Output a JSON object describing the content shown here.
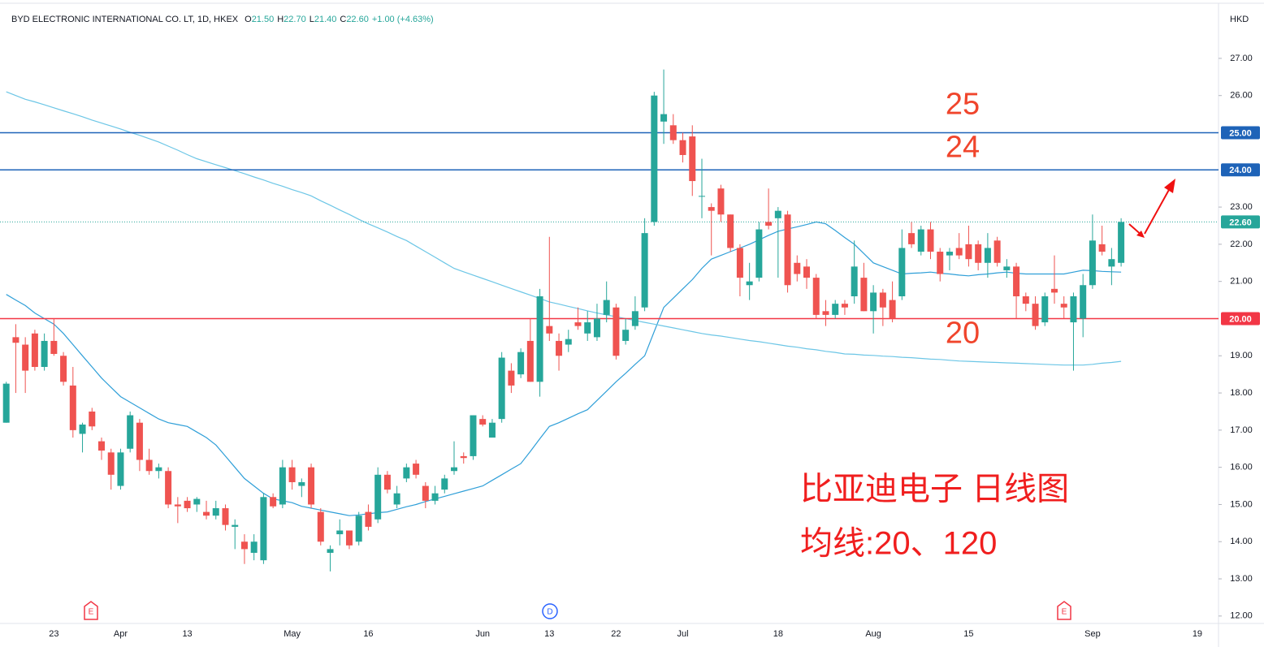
{
  "chart_data": {
    "type": "candlestick",
    "symbol": "BYD ELECTRONIC INTERNATIONAL CO. LT, 1D, HKEX",
    "legend_items": [
      {
        "key": "O",
        "value": "21.50"
      },
      {
        "key": "H",
        "value": "22.70"
      },
      {
        "key": "L",
        "value": "21.40"
      },
      {
        "key": "C",
        "value": "22.60"
      },
      {
        "key": "",
        "value": "+1.00 (+4.63%)"
      }
    ],
    "currency": "HKD",
    "up_color": "#26a69a",
    "down_color": "#ef5350",
    "categories": [
      null,
      null,
      null,
      null,
      null,
      "23",
      null,
      null,
      null,
      null,
      null,
      null,
      "Apr",
      null,
      null,
      null,
      null,
      null,
      null,
      "13",
      null,
      null,
      null,
      null,
      null,
      null,
      null,
      null,
      null,
      null,
      "May",
      null,
      null,
      null,
      null,
      null,
      null,
      null,
      "16",
      null,
      null,
      null,
      null,
      null,
      null,
      null,
      null,
      null,
      null,
      null,
      "Jun",
      null,
      null,
      null,
      null,
      null,
      null,
      "13",
      null,
      null,
      null,
      null,
      null,
      null,
      "22",
      null,
      null,
      null,
      null,
      null,
      null,
      "Jul",
      null,
      null,
      null,
      null,
      null,
      null,
      null,
      null,
      null,
      "18",
      null,
      null,
      null,
      null,
      null,
      null,
      null,
      null,
      null,
      "Aug",
      null,
      null,
      null,
      null,
      null,
      null,
      null,
      null,
      null,
      "15",
      null,
      null,
      null,
      null,
      null,
      null,
      null,
      null,
      null,
      null,
      null,
      null,
      "Sep",
      null,
      null,
      null,
      null,
      null,
      null,
      null,
      null,
      null,
      null,
      "19",
      null,
      null
    ],
    "open": [
      17.2,
      19.5,
      19.3,
      19.6,
      18.7,
      19.4,
      19.0,
      18.2,
      16.9,
      17.5,
      16.7,
      16.4,
      15.5,
      16.5,
      17.2,
      16.2,
      15.9,
      15.9,
      15.0,
      15.1,
      15.0,
      14.8,
      14.7,
      14.9,
      14.4,
      14.0,
      13.7,
      13.5,
      15.2,
      15.0,
      16.0,
      15.5,
      16.0,
      14.8,
      13.7,
      14.2,
      14.3,
      14.0,
      14.8,
      14.6,
      15.8,
      15.0,
      15.7,
      16.1,
      15.5,
      15.1,
      15.4,
      15.9,
      16.3,
      16.3,
      17.3,
      16.8,
      17.3,
      18.6,
      18.5,
      19.4,
      18.3,
      19.8,
      19.4,
      19.3,
      19.9,
      19.6,
      19.5,
      20.1,
      20.3,
      19.4,
      19.8,
      20.3,
      22.6,
      25.3,
      25.2,
      24.8,
      24.9,
      23.3,
      23.0,
      23.5,
      22.8,
      21.9,
      20.9,
      21.1,
      22.6,
      22.7,
      22.8,
      21.5,
      21.4,
      21.1,
      20.2,
      20.1,
      20.4,
      20.6,
      21.1,
      20.2,
      20.7,
      20.5,
      20.6,
      22.3,
      21.8,
      22.4,
      21.8,
      21.7,
      21.9,
      22.0,
      22.0,
      21.5,
      22.1,
      21.3,
      21.4,
      20.6,
      20.4,
      19.9,
      20.8,
      20.4,
      19.9,
      20.0,
      20.9,
      22.0,
      21.4,
      21.5,
      null,
      null,
      null,
      null,
      null,
      null,
      null,
      null,
      null,
      null
    ],
    "high": [
      18.3,
      19.85,
      19.5,
      19.7,
      19.6,
      20.0,
      19.1,
      18.7,
      17.2,
      17.6,
      16.8,
      16.5,
      16.5,
      17.5,
      17.3,
      16.5,
      16.1,
      16.0,
      15.2,
      15.2,
      15.2,
      15.1,
      15.1,
      15.0,
      14.6,
      14.2,
      14.2,
      15.3,
      15.3,
      16.2,
      16.2,
      15.7,
      16.1,
      14.9,
      13.9,
      14.6,
      14.3,
      14.8,
      15.0,
      16.0,
      15.9,
      15.5,
      16.1,
      16.2,
      15.6,
      15.5,
      15.8,
      16.7,
      16.4,
      17.4,
      17.4,
      17.3,
      19.1,
      18.8,
      19.2,
      20.0,
      20.8,
      22.2,
      19.6,
      19.7,
      20.3,
      20.2,
      20.4,
      21.0,
      20.4,
      20.0,
      20.6,
      22.7,
      26.1,
      26.7,
      25.5,
      25.0,
      25.2,
      24.3,
      23.1,
      23.6,
      22.8,
      22.0,
      21.5,
      22.6,
      23.5,
      23.0,
      22.9,
      21.7,
      21.6,
      21.2,
      20.5,
      20.5,
      20.5,
      22.1,
      21.5,
      20.9,
      20.8,
      21.0,
      22.4,
      22.6,
      22.5,
      22.6,
      21.9,
      21.9,
      22.3,
      22.5,
      22.1,
      22.3,
      22.2,
      21.6,
      21.5,
      20.7,
      20.6,
      20.7,
      21.7,
      20.6,
      20.7,
      21.2,
      22.8,
      22.5,
      21.9,
      22.7,
      null,
      null,
      null,
      null,
      null,
      null,
      null,
      null,
      null,
      null
    ],
    "low": [
      17.2,
      18.0,
      18.0,
      18.6,
      18.6,
      19.0,
      18.2,
      16.8,
      16.4,
      17.0,
      16.2,
      15.4,
      15.4,
      16.4,
      15.9,
      15.8,
      15.7,
      14.9,
      14.5,
      14.8,
      14.8,
      14.6,
      14.6,
      14.3,
      13.8,
      13.4,
      13.5,
      13.4,
      14.9,
      14.9,
      15.4,
      15.2,
      14.9,
      13.9,
      13.2,
      13.9,
      13.8,
      13.9,
      14.3,
      14.5,
      15.3,
      14.9,
      15.6,
      15.7,
      14.9,
      15.0,
      15.3,
      15.8,
      16.1,
      16.2,
      17.1,
      16.8,
      17.2,
      18.0,
      18.4,
      18.3,
      17.9,
      19.4,
      18.6,
      19.1,
      19.7,
      19.4,
      19.4,
      19.9,
      18.9,
      19.3,
      19.7,
      20.2,
      22.5,
      24.7,
      24.7,
      24.2,
      23.3,
      22.7,
      21.7,
      22.6,
      21.8,
      20.6,
      20.5,
      21.0,
      22.4,
      21.1,
      20.7,
      21.0,
      20.8,
      20.0,
      19.8,
      20.0,
      20.1,
      20.4,
      20.2,
      19.6,
      19.8,
      19.9,
      20.5,
      21.9,
      21.7,
      21.6,
      21.0,
      21.3,
      21.6,
      21.4,
      21.3,
      21.1,
      21.4,
      21.1,
      20.0,
      20.2,
      19.7,
      19.8,
      20.4,
      20.0,
      18.6,
      19.5,
      20.8,
      21.7,
      20.9,
      21.4,
      null,
      null,
      null,
      null,
      null,
      null,
      null,
      null,
      null,
      null
    ],
    "close": [
      18.25,
      19.35,
      18.6,
      18.7,
      19.4,
      19.05,
      18.3,
      17.0,
      17.15,
      17.1,
      16.45,
      15.8,
      16.4,
      17.4,
      16.2,
      15.9,
      16.0,
      15.0,
      14.95,
      14.9,
      15.15,
      14.7,
      14.9,
      14.45,
      14.45,
      13.8,
      14.0,
      15.2,
      14.95,
      16.0,
      15.6,
      15.6,
      15.0,
      14.0,
      13.8,
      14.3,
      13.9,
      14.7,
      14.4,
      15.8,
      15.4,
      15.3,
      16.0,
      15.8,
      15.1,
      15.3,
      15.7,
      16.0,
      16.25,
      17.4,
      17.15,
      17.2,
      18.95,
      18.2,
      19.1,
      18.3,
      20.6,
      19.6,
      19.0,
      19.45,
      19.8,
      19.9,
      20.0,
      20.5,
      19.0,
      19.7,
      20.2,
      22.3,
      26.0,
      25.5,
      24.8,
      24.4,
      23.7,
      23.3,
      22.9,
      22.8,
      21.9,
      21.1,
      21.0,
      22.4,
      22.5,
      22.9,
      20.9,
      21.2,
      21.1,
      20.1,
      20.1,
      20.4,
      20.3,
      21.4,
      20.2,
      20.7,
      20.3,
      20.0,
      21.9,
      22.0,
      22.4,
      21.8,
      21.2,
      21.8,
      21.7,
      21.6,
      21.5,
      21.9,
      21.5,
      21.4,
      20.6,
      20.4,
      19.8,
      20.6,
      20.7,
      20.3,
      20.6,
      20.9,
      22.1,
      21.8,
      21.6,
      22.6,
      null,
      null,
      null,
      null,
      null,
      null,
      null,
      null,
      null,
      null
    ],
    "lines": [
      {
        "color": "#2f9fd8",
        "values": [
          20.65,
          20.5,
          20.35,
          20.15,
          20.0,
          19.85,
          19.6,
          19.3,
          19.0,
          18.7,
          18.4,
          18.15,
          17.9,
          17.75,
          17.6,
          17.45,
          17.3,
          17.2,
          17.15,
          17.1,
          16.95,
          16.8,
          16.6,
          16.3,
          16.0,
          15.7,
          15.5,
          15.3,
          15.15,
          15.1,
          15.05,
          14.95,
          14.9,
          14.85,
          14.8,
          14.75,
          14.7,
          14.72,
          14.75,
          14.78,
          14.8,
          14.87,
          14.94,
          15.0,
          15.08,
          15.15,
          15.22,
          15.29,
          15.36,
          15.43,
          15.5,
          15.65,
          15.8,
          15.95,
          16.1,
          16.43,
          16.77,
          17.1,
          17.2,
          17.32,
          17.44,
          17.55,
          17.8,
          18.05,
          18.3,
          18.53,
          18.77,
          19.0,
          19.65,
          20.3,
          20.55,
          20.8,
          21.05,
          21.35,
          21.6,
          21.7,
          21.8,
          21.9,
          22.0,
          22.12,
          22.24,
          22.35,
          22.41,
          22.47,
          22.53,
          22.6,
          22.55,
          22.37,
          22.18,
          22.0,
          21.75,
          21.5,
          21.4,
          21.3,
          21.2,
          21.22,
          21.23,
          21.25,
          21.22,
          21.2,
          21.17,
          21.15,
          21.18,
          21.2,
          21.23,
          21.25,
          21.22,
          21.2,
          21.2,
          21.2,
          21.2,
          21.2,
          21.25,
          21.3,
          21.29,
          21.27,
          21.26,
          21.25,
          null,
          null,
          null,
          null,
          null,
          null,
          null,
          null,
          null,
          null
        ]
      },
      {
        "color": "#6cc6e6",
        "values": [
          26.1,
          26.0,
          25.9,
          25.83,
          25.75,
          25.67,
          25.59,
          25.51,
          25.43,
          25.34,
          25.26,
          25.18,
          25.1,
          25.01,
          24.93,
          24.84,
          24.75,
          24.64,
          24.53,
          24.41,
          24.3,
          24.22,
          24.14,
          24.06,
          23.98,
          23.9,
          23.81,
          23.73,
          23.64,
          23.56,
          23.47,
          23.39,
          23.3,
          23.17,
          23.05,
          22.92,
          22.8,
          22.67,
          22.55,
          22.44,
          22.33,
          22.21,
          22.1,
          21.95,
          21.8,
          21.65,
          21.5,
          21.35,
          21.26,
          21.17,
          21.08,
          20.99,
          20.9,
          20.81,
          20.72,
          20.63,
          20.54,
          20.45,
          20.39,
          20.33,
          20.27,
          20.21,
          20.15,
          20.1,
          20.05,
          20.0,
          19.95,
          19.9,
          19.85,
          19.8,
          19.75,
          19.7,
          19.65,
          19.6,
          19.56,
          19.53,
          19.49,
          19.45,
          19.41,
          19.38,
          19.34,
          19.3,
          19.26,
          19.23,
          19.19,
          19.16,
          19.12,
          19.09,
          19.05,
          19.04,
          19.02,
          19.01,
          18.99,
          18.98,
          18.96,
          18.95,
          18.93,
          18.91,
          18.9,
          18.88,
          18.86,
          18.85,
          18.84,
          18.83,
          18.82,
          18.81,
          18.8,
          18.79,
          18.78,
          18.77,
          18.76,
          18.75,
          18.75,
          18.75,
          18.77,
          18.8,
          18.82,
          18.85,
          null,
          null,
          null,
          null,
          null,
          null,
          null,
          null,
          null,
          null
        ]
      }
    ],
    "levels": [
      {
        "value": 25,
        "label": "25.00",
        "annotation": "25",
        "color": "#1e63b8"
      },
      {
        "value": 24,
        "label": "24.00",
        "annotation": "24",
        "color": "#1e63b8"
      },
      {
        "value": 20,
        "label": "20.00",
        "annotation": "20",
        "color": "#f23645"
      }
    ],
    "last_price": {
      "value": 22.6,
      "label": "22.60",
      "color": "#26a69a"
    },
    "notes": [
      "比亚迪电子 日线图",
      "均线:20、120"
    ],
    "events": [
      "E",
      "D",
      "E"
    ],
    "ylim": [
      11.8,
      28.57
    ],
    "yticks": [
      {
        "value": 12,
        "label": "12.00"
      },
      {
        "value": 13,
        "label": "13.00"
      },
      {
        "value": 14,
        "label": "14.00"
      },
      {
        "value": 15,
        "label": "15.00"
      },
      {
        "value": 16,
        "label": "16.00"
      },
      {
        "value": 17,
        "label": "17.00"
      },
      {
        "value": 18,
        "label": "18.00"
      },
      {
        "value": 19,
        "label": "19.00"
      },
      {
        "value": 21,
        "label": "21.00"
      },
      {
        "value": 22,
        "label": "22.00"
      },
      {
        "value": 23,
        "label": "23.00"
      },
      {
        "value": 26,
        "label": "26.00"
      },
      {
        "value": 27,
        "label": "27.00"
      }
    ],
    "grid": false
  }
}
